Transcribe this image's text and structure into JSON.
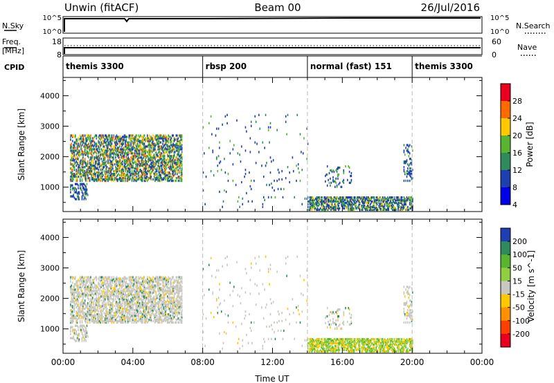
{
  "header": {
    "station": "Unwin (fitACF)",
    "beam": "Beam 00",
    "date": "26/Jul/2016"
  },
  "top_panels": {
    "nsky_label": "N.Sky",
    "nsky_ticks": [
      "10^5",
      "10^0"
    ],
    "nsky_ticks_right": [
      "10^5",
      "10^0"
    ],
    "nsearch_label": "N.Search",
    "freq_label": "Freq.",
    "freq_unit": "[MHz]",
    "freq_ticks": [
      "18",
      "8"
    ],
    "nave_label": "Nave",
    "nave_ticks": [
      "60",
      "0"
    ],
    "cpid_label": "CPID"
  },
  "cpid_segments": [
    {
      "label": "themis 3300",
      "start_h": 0.0,
      "end_h": 8.0
    },
    {
      "label": "rbsp 200",
      "start_h": 8.0,
      "end_h": 14.0
    },
    {
      "label": "normal (fast) 151",
      "start_h": 14.0,
      "end_h": 20.0
    },
    {
      "label": "themis 3300",
      "start_h": 20.0,
      "end_h": 24.0
    }
  ],
  "chart_data": [
    {
      "type": "heatmap",
      "name": "power",
      "ylabel": "Slant Range [km]",
      "xlim": [
        0,
        24
      ],
      "ylim": [
        200,
        4600
      ],
      "yticks": [
        "1000",
        "2000",
        "3000",
        "4000"
      ],
      "colorbar": {
        "label": "Power [dB]",
        "ticks": [
          "28",
          "24",
          "20",
          "16",
          "12",
          "8",
          "4"
        ],
        "colors": [
          "#e8001e",
          "#ff6a00",
          "#ffc800",
          "#59b52f",
          "#2e8b5b",
          "#1e3fb0",
          "#0000e6"
        ]
      },
      "scatter_regions": [
        {
          "h0": 0.4,
          "h1": 6.8,
          "r0": 1200,
          "r1": 2700,
          "density": 0.55,
          "level": "mid-high"
        },
        {
          "h0": 0.4,
          "h1": 1.4,
          "r0": 600,
          "r1": 1100,
          "density": 0.35,
          "level": "low"
        },
        {
          "h0": 8.0,
          "h1": 14.0,
          "r0": 300,
          "r1": 3400,
          "density": 0.02,
          "level": "low"
        },
        {
          "h0": 14.0,
          "h1": 20.0,
          "r0": 250,
          "r1": 700,
          "density": 0.6,
          "level": "low-mid"
        },
        {
          "h0": 15.0,
          "h1": 16.5,
          "r0": 1000,
          "r1": 1700,
          "density": 0.15,
          "level": "low"
        },
        {
          "h0": 19.5,
          "h1": 20.0,
          "r0": 1200,
          "r1": 2400,
          "density": 0.2,
          "level": "low"
        }
      ]
    },
    {
      "type": "heatmap",
      "name": "velocity",
      "ylabel": "Slant Range [km]",
      "xlabel": "Time UT",
      "xlim": [
        0,
        24
      ],
      "ylim": [
        200,
        4600
      ],
      "xticks": [
        "00:00",
        "04:00",
        "08:00",
        "12:00",
        "16:00",
        "20:00",
        "00:00"
      ],
      "yticks": [
        "1000",
        "2000",
        "3000",
        "4000"
      ],
      "colorbar": {
        "label": "Velocity [m s^-1]",
        "ticks": [
          "200",
          "100",
          "50",
          "15",
          "-15",
          "-50",
          "-100",
          "-200"
        ],
        "colors": [
          "#1e3fb0",
          "#2e8b5b",
          "#59b52f",
          "#90d040",
          "#c8c8c0",
          "#ffc800",
          "#ff9000",
          "#ff4000",
          "#e8001e"
        ]
      }
    }
  ]
}
